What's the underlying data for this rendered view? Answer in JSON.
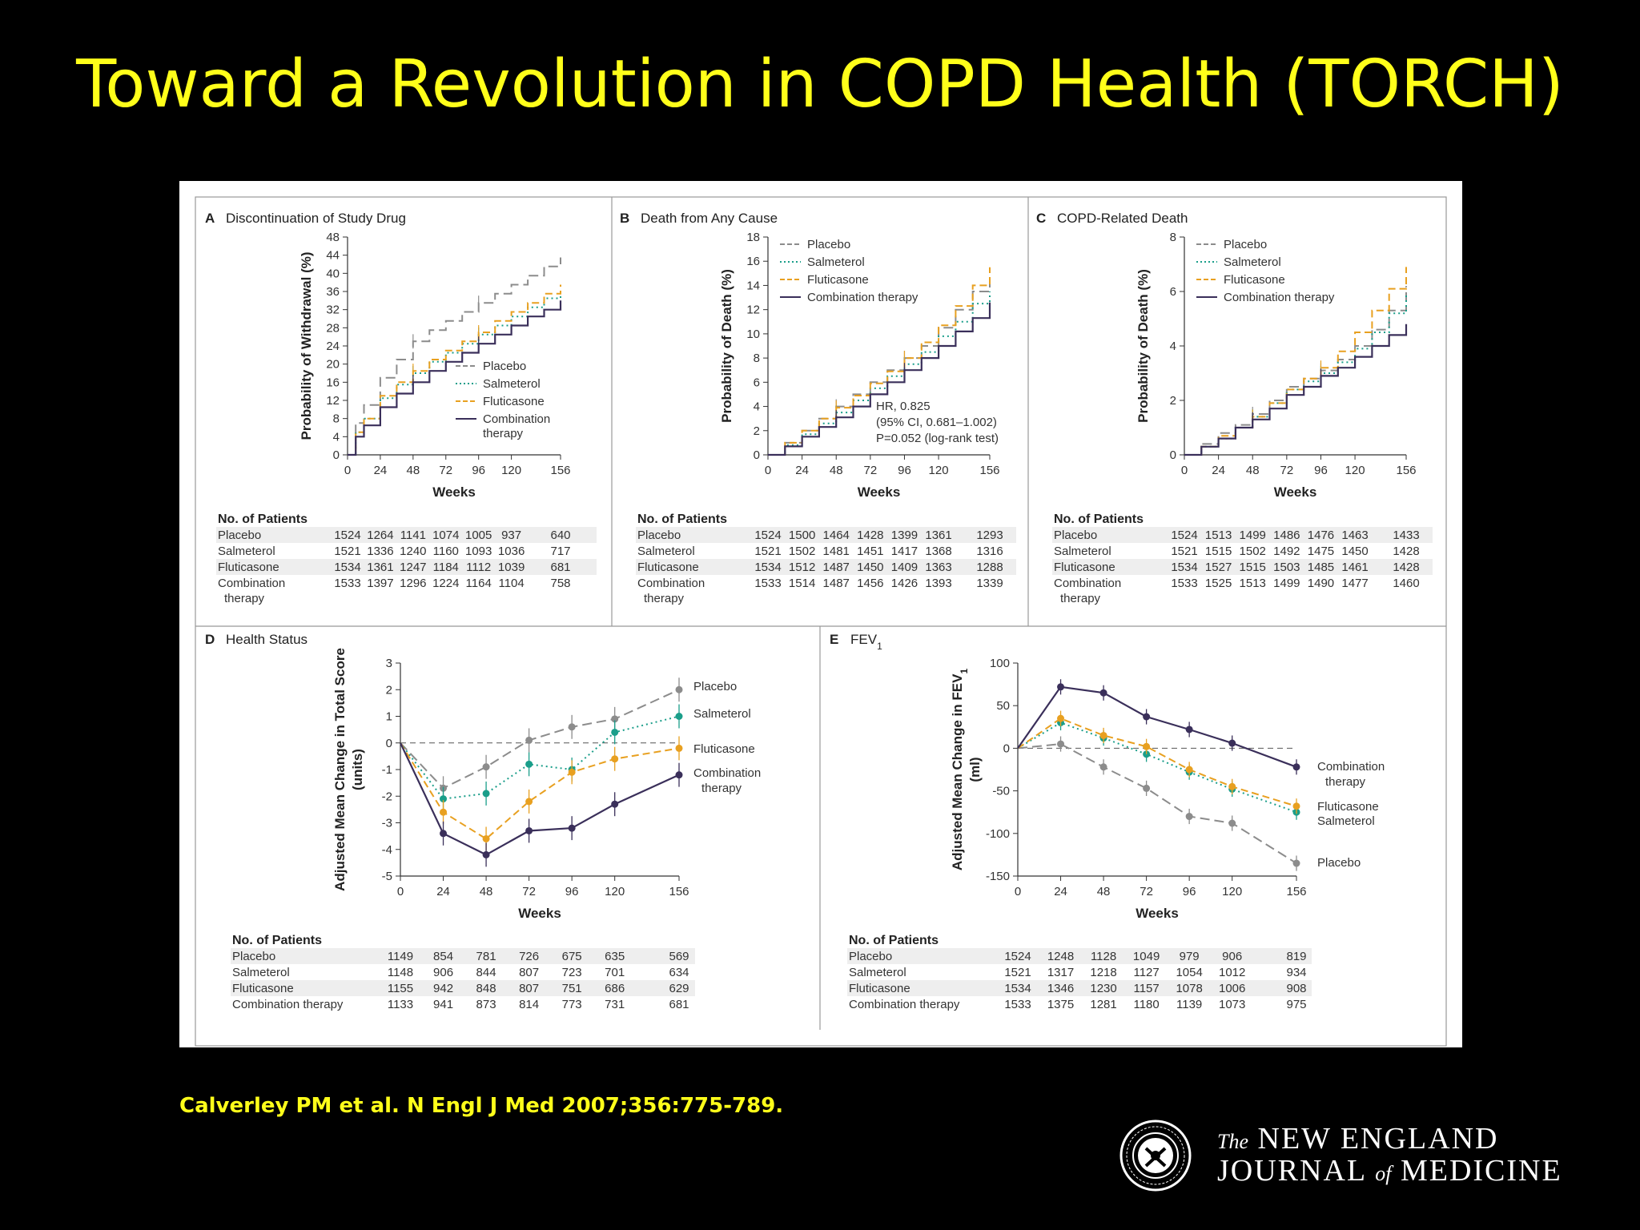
{
  "slide": {
    "title": "Toward a Revolution in COPD Health (TORCH)",
    "citation": "Calverley PM et al. N Engl J Med 2007;356:775-789.",
    "journal_the": "The",
    "journal_line1": "NEW ENGLAND",
    "journal_line2_a": "JOURNAL",
    "journal_line2_of": "of",
    "journal_line2_b": "MEDICINE",
    "logo_text": "MEDICINE · NEW ENGLAND JOURNAL"
  },
  "colors": {
    "title": "#ffff1a",
    "background": "#000000",
    "placebo": "#8c8c8c",
    "salmeterol": "#1a9e8a",
    "fluticasone": "#e8a020",
    "combination": "#3a2f5a"
  },
  "chart_data": [
    {
      "id": "A",
      "letter": "A",
      "type": "line",
      "title": "Discontinuation of Study Drug",
      "xlabel": "Weeks",
      "ylabel": "Probability of Withdrawal (%)",
      "xlim": [
        0,
        156
      ],
      "ylim": [
        0,
        48
      ],
      "xticks": [
        0,
        24,
        48,
        72,
        96,
        120,
        156
      ],
      "yticks": [
        0,
        4,
        8,
        12,
        16,
        20,
        24,
        28,
        32,
        36,
        40,
        44,
        48
      ],
      "legend": "inside",
      "series": [
        {
          "name": "Placebo",
          "key": "placebo",
          "x": [
            0,
            6,
            12,
            24,
            36,
            48,
            60,
            72,
            84,
            96,
            108,
            120,
            132,
            144,
            156
          ],
          "y": [
            0,
            7,
            11,
            17,
            21,
            25,
            27.5,
            29.5,
            31.5,
            33.5,
            35.5,
            37.5,
            39.5,
            41.5,
            43.5
          ]
        },
        {
          "name": "Salmeterol",
          "key": "salmeterol",
          "x": [
            0,
            6,
            12,
            24,
            36,
            48,
            60,
            72,
            84,
            96,
            108,
            120,
            132,
            144,
            156
          ],
          "y": [
            0,
            5,
            8,
            12.5,
            15.5,
            18,
            20.5,
            22.5,
            24.5,
            26.5,
            28.5,
            30.5,
            32.5,
            34.5,
            36
          ]
        },
        {
          "name": "Fluticasone",
          "key": "fluticasone",
          "x": [
            0,
            6,
            12,
            24,
            36,
            48,
            60,
            72,
            84,
            96,
            108,
            120,
            132,
            144,
            156
          ],
          "y": [
            0,
            5,
            8,
            13,
            16,
            18.5,
            21,
            23,
            25,
            27,
            29.5,
            31.5,
            33.5,
            35.5,
            37.5
          ]
        },
        {
          "name": "Combination therapy",
          "key": "combination",
          "x": [
            0,
            6,
            12,
            24,
            36,
            48,
            60,
            72,
            84,
            96,
            108,
            120,
            132,
            144,
            156
          ],
          "y": [
            0,
            4,
            6.5,
            10.5,
            13.5,
            16,
            18.5,
            20.5,
            22.5,
            24.5,
            26.5,
            28.5,
            30.5,
            32,
            34
          ]
        }
      ],
      "patients": {
        "heading": "No. of Patients",
        "rows": [
          {
            "label": "Placebo",
            "values": [
              "1524",
              "1264",
              "1141",
              "1074",
              "1005",
              "937",
              "640"
            ]
          },
          {
            "label": "Salmeterol",
            "values": [
              "1521",
              "1336",
              "1240",
              "1160",
              "1093",
              "1036",
              "717"
            ]
          },
          {
            "label": "Fluticasone",
            "values": [
              "1534",
              "1361",
              "1247",
              "1184",
              "1112",
              "1039",
              "681"
            ]
          },
          {
            "label": "Combination",
            "label2": "therapy",
            "values": [
              "1533",
              "1397",
              "1296",
              "1224",
              "1164",
              "1104",
              "758"
            ]
          }
        ]
      }
    },
    {
      "id": "B",
      "letter": "B",
      "type": "line",
      "title": "Death from Any Cause",
      "xlabel": "Weeks",
      "ylabel": "Probability of Death (%)",
      "xlim": [
        0,
        156
      ],
      "ylim": [
        0,
        18
      ],
      "xticks": [
        0,
        24,
        48,
        72,
        96,
        120,
        156
      ],
      "yticks": [
        0,
        2,
        4,
        6,
        8,
        10,
        12,
        14,
        16,
        18
      ],
      "legend": "top-left",
      "annotation": [
        "HR, 0.825",
        "(95% CI, 0.681–1.002)",
        "P=0.052 (log-rank test)"
      ],
      "series": [
        {
          "name": "Placebo",
          "key": "placebo",
          "x": [
            0,
            12,
            24,
            36,
            48,
            60,
            72,
            84,
            96,
            108,
            120,
            132,
            144,
            156
          ],
          "y": [
            0,
            1,
            2,
            3,
            4,
            5,
            6,
            7,
            8,
            9,
            10.5,
            12,
            13.5,
            15
          ]
        },
        {
          "name": "Salmeterol",
          "key": "salmeterol",
          "x": [
            0,
            12,
            24,
            36,
            48,
            60,
            72,
            84,
            96,
            108,
            120,
            132,
            144,
            156
          ],
          "y": [
            0,
            0.8,
            1.7,
            2.6,
            3.5,
            4.5,
            5.5,
            6.5,
            7.5,
            8.5,
            9.8,
            11,
            12.5,
            13.5
          ]
        },
        {
          "name": "Fluticasone",
          "key": "fluticasone",
          "x": [
            0,
            12,
            24,
            36,
            48,
            60,
            72,
            84,
            96,
            108,
            120,
            132,
            144,
            156
          ],
          "y": [
            0,
            1,
            2,
            3,
            3.9,
            4.9,
            5.9,
            6.9,
            8,
            9.3,
            10.7,
            12.3,
            14,
            15.5
          ]
        },
        {
          "name": "Combination therapy",
          "key": "combination",
          "x": [
            0,
            12,
            24,
            36,
            48,
            60,
            72,
            84,
            96,
            108,
            120,
            132,
            144,
            156
          ],
          "y": [
            0,
            0.7,
            1.5,
            2.3,
            3.1,
            4,
            5,
            6,
            7,
            8,
            9,
            10.2,
            11.3,
            12.6
          ]
        }
      ],
      "patients": {
        "heading": "No. of Patients",
        "rows": [
          {
            "label": "Placebo",
            "values": [
              "1524",
              "1500",
              "1464",
              "1428",
              "1399",
              "1361",
              "1293"
            ]
          },
          {
            "label": "Salmeterol",
            "values": [
              "1521",
              "1502",
              "1481",
              "1451",
              "1417",
              "1368",
              "1316"
            ]
          },
          {
            "label": "Fluticasone",
            "values": [
              "1534",
              "1512",
              "1487",
              "1450",
              "1409",
              "1363",
              "1288"
            ]
          },
          {
            "label": "Combination",
            "label2": "therapy",
            "values": [
              "1533",
              "1514",
              "1487",
              "1456",
              "1426",
              "1393",
              "1339"
            ]
          }
        ]
      }
    },
    {
      "id": "C",
      "letter": "C",
      "type": "line",
      "title": "COPD-Related Death",
      "xlabel": "Weeks",
      "ylabel": "Probability of Death (%)",
      "xlim": [
        0,
        156
      ],
      "ylim": [
        0,
        8
      ],
      "xticks": [
        0,
        24,
        48,
        72,
        96,
        120,
        156
      ],
      "yticks": [
        0,
        2,
        4,
        6,
        8
      ],
      "legend": "top-left",
      "series": [
        {
          "name": "Placebo",
          "key": "placebo",
          "x": [
            0,
            12,
            24,
            36,
            48,
            60,
            72,
            84,
            96,
            108,
            120,
            132,
            144,
            156
          ],
          "y": [
            0,
            0.4,
            0.8,
            1.1,
            1.5,
            2,
            2.5,
            2.8,
            3.1,
            3.5,
            4,
            4.6,
            5.3,
            6.2
          ]
        },
        {
          "name": "Salmeterol",
          "key": "salmeterol",
          "x": [
            0,
            12,
            24,
            36,
            48,
            60,
            72,
            84,
            96,
            108,
            120,
            132,
            144,
            156
          ],
          "y": [
            0,
            0.3,
            0.6,
            1,
            1.4,
            1.9,
            2.4,
            2.7,
            3,
            3.4,
            3.9,
            4.5,
            5.2,
            5.9
          ]
        },
        {
          "name": "Fluticasone",
          "key": "fluticasone",
          "x": [
            0,
            12,
            24,
            36,
            48,
            60,
            72,
            84,
            96,
            108,
            120,
            132,
            144,
            156
          ],
          "y": [
            0,
            0.3,
            0.7,
            1,
            1.4,
            1.9,
            2.4,
            2.8,
            3.2,
            3.8,
            4.5,
            5.3,
            6.1,
            6.9
          ]
        },
        {
          "name": "Combination therapy",
          "key": "combination",
          "x": [
            0,
            12,
            24,
            36,
            48,
            60,
            72,
            84,
            96,
            108,
            120,
            132,
            144,
            156
          ],
          "y": [
            0,
            0.3,
            0.6,
            1,
            1.3,
            1.7,
            2.2,
            2.5,
            2.9,
            3.2,
            3.6,
            4,
            4.4,
            4.8
          ]
        }
      ],
      "patients": {
        "heading": "No. of Patients",
        "rows": [
          {
            "label": "Placebo",
            "values": [
              "1524",
              "1513",
              "1499",
              "1486",
              "1476",
              "1463",
              "1433"
            ]
          },
          {
            "label": "Salmeterol",
            "values": [
              "1521",
              "1515",
              "1502",
              "1492",
              "1475",
              "1450",
              "1428"
            ]
          },
          {
            "label": "Fluticasone",
            "values": [
              "1534",
              "1527",
              "1515",
              "1503",
              "1485",
              "1461",
              "1428"
            ]
          },
          {
            "label": "Combination",
            "label2": "therapy",
            "values": [
              "1533",
              "1525",
              "1513",
              "1499",
              "1490",
              "1477",
              "1460"
            ]
          }
        ]
      }
    },
    {
      "id": "D",
      "letter": "D",
      "type": "line",
      "title": "Health Status",
      "xlabel": "Weeks",
      "ylabel": "Adjusted Mean Change in Total Score",
      "ylabel2": "(units)",
      "xlim": [
        0,
        156
      ],
      "ylim": [
        -5,
        3
      ],
      "xticks": [
        0,
        24,
        48,
        72,
        96,
        120,
        156
      ],
      "yticks": [
        -5,
        -4,
        -3,
        -2,
        -1,
        0,
        1,
        2,
        3
      ],
      "legend": "right",
      "series": [
        {
          "name": "Placebo",
          "key": "placebo",
          "x": [
            0,
            24,
            48,
            72,
            96,
            120,
            156
          ],
          "y": [
            0,
            -1.7,
            -0.9,
            0.1,
            0.6,
            0.9,
            2.0
          ]
        },
        {
          "name": "Salmeterol",
          "key": "salmeterol",
          "x": [
            0,
            24,
            48,
            72,
            96,
            120,
            156
          ],
          "y": [
            0,
            -2.1,
            -1.9,
            -0.8,
            -1.0,
            0.4,
            1.0
          ]
        },
        {
          "name": "Fluticasone",
          "key": "fluticasone",
          "x": [
            0,
            24,
            48,
            72,
            96,
            120,
            156
          ],
          "y": [
            0,
            -2.6,
            -3.6,
            -2.2,
            -1.1,
            -0.6,
            -0.2
          ]
        },
        {
          "name": "Combination therapy",
          "key": "combination",
          "x": [
            0,
            24,
            48,
            72,
            96,
            120,
            156
          ],
          "y": [
            0,
            -3.4,
            -4.2,
            -3.3,
            -3.2,
            -2.3,
            -1.2
          ]
        }
      ],
      "labels_right": [
        "Placebo",
        "Salmeterol",
        "Fluticasone",
        "Combination",
        "therapy"
      ],
      "patients": {
        "heading": "No. of Patients",
        "rows": [
          {
            "label": "Placebo",
            "values": [
              "1149",
              "854",
              "781",
              "726",
              "675",
              "635",
              "569"
            ]
          },
          {
            "label": "Salmeterol",
            "values": [
              "1148",
              "906",
              "844",
              "807",
              "723",
              "701",
              "634"
            ]
          },
          {
            "label": "Fluticasone",
            "values": [
              "1155",
              "942",
              "848",
              "807",
              "751",
              "686",
              "629"
            ]
          },
          {
            "label": "Combination therapy",
            "values": [
              "1133",
              "941",
              "873",
              "814",
              "773",
              "731",
              "681"
            ]
          }
        ]
      }
    },
    {
      "id": "E",
      "letter": "E",
      "type": "line",
      "title": "FEV",
      "title_sub": "1",
      "xlabel": "Weeks",
      "ylabel": "Adjusted Mean Change in FEV",
      "ylabel_sub": "1",
      "ylabel2": "(ml)",
      "xlim": [
        0,
        156
      ],
      "ylim": [
        -150,
        100
      ],
      "xticks": [
        0,
        24,
        48,
        72,
        96,
        120,
        156
      ],
      "yticks": [
        -150,
        -100,
        -50,
        0,
        50,
        100
      ],
      "legend": "right",
      "series": [
        {
          "name": "Placebo",
          "key": "placebo",
          "x": [
            0,
            24,
            48,
            72,
            96,
            120,
            156
          ],
          "y": [
            0,
            5,
            -22,
            -47,
            -80,
            -88,
            -135
          ]
        },
        {
          "name": "Salmeterol",
          "key": "salmeterol",
          "x": [
            0,
            24,
            48,
            72,
            96,
            120,
            156
          ],
          "y": [
            0,
            30,
            12,
            -7,
            -28,
            -48,
            -75
          ]
        },
        {
          "name": "Fluticasone",
          "key": "fluticasone",
          "x": [
            0,
            24,
            48,
            72,
            96,
            120,
            156
          ],
          "y": [
            0,
            35,
            15,
            2,
            -25,
            -45,
            -68
          ]
        },
        {
          "name": "Combination therapy",
          "key": "combination",
          "x": [
            0,
            24,
            48,
            72,
            96,
            120,
            156
          ],
          "y": [
            0,
            72,
            65,
            37,
            22,
            6,
            -22
          ]
        }
      ],
      "labels_right": [
        "Combination",
        "therapy",
        "Fluticasone",
        "Salmeterol",
        "Placebo"
      ],
      "patients": {
        "heading": "No. of Patients",
        "rows": [
          {
            "label": "Placebo",
            "values": [
              "1524",
              "1248",
              "1128",
              "1049",
              "979",
              "906",
              "819"
            ]
          },
          {
            "label": "Salmeterol",
            "values": [
              "1521",
              "1317",
              "1218",
              "1127",
              "1054",
              "1012",
              "934"
            ]
          },
          {
            "label": "Fluticasone",
            "values": [
              "1534",
              "1346",
              "1230",
              "1157",
              "1078",
              "1006",
              "908"
            ]
          },
          {
            "label": "Combination therapy",
            "values": [
              "1533",
              "1375",
              "1281",
              "1180",
              "1139",
              "1073",
              "975"
            ]
          }
        ]
      }
    }
  ]
}
